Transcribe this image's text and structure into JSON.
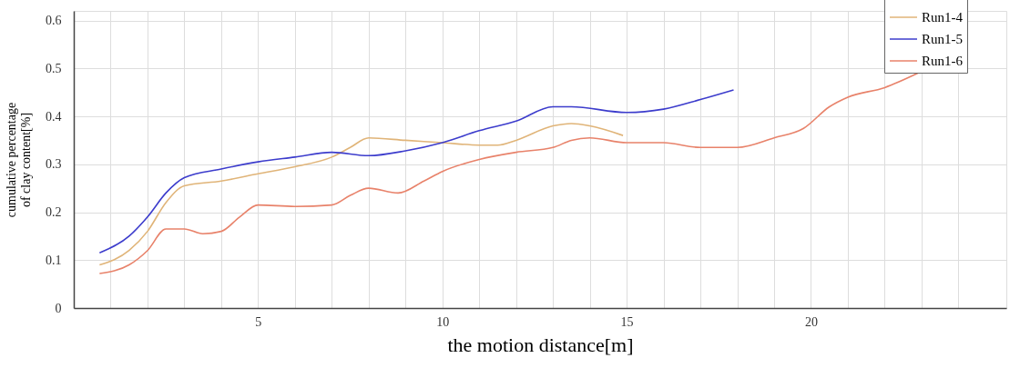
{
  "chart_data": {
    "type": "line",
    "xlabel": "the motion distance[m]",
    "ylabel": "cumulative percentage\nof clay content[%]",
    "xlim": [
      0,
      25.3
    ],
    "ylim": [
      0,
      0.62
    ],
    "xticks": [
      {
        "value": 1,
        "label": null
      },
      {
        "value": 2,
        "label": null
      },
      {
        "value": 3,
        "label": null
      },
      {
        "value": 4,
        "label": null
      },
      5,
      {
        "value": 6,
        "label": null
      },
      {
        "value": 7,
        "label": null
      },
      {
        "value": 8,
        "label": null
      },
      {
        "value": 9,
        "label": null
      },
      10,
      {
        "value": 11,
        "label": null
      },
      {
        "value": 12,
        "label": null
      },
      {
        "value": 13,
        "label": null
      },
      {
        "value": 14,
        "label": null
      },
      15,
      {
        "value": 16,
        "label": null
      },
      {
        "value": 17,
        "label": null
      },
      {
        "value": 18,
        "label": null
      },
      {
        "value": 19,
        "label": null
      },
      20,
      {
        "value": 21,
        "label": null
      },
      {
        "value": 22,
        "label": null
      },
      {
        "value": 23,
        "label": null
      },
      {
        "value": 24,
        "label": null
      }
    ],
    "yticks": [
      0,
      0.1,
      0.2,
      0.3,
      0.4,
      0.5,
      0.6
    ],
    "grid": true,
    "legend": "top right",
    "marker": "none",
    "line_style": "solid",
    "series": [
      {
        "name": "Run1-4",
        "color": "#e0b478",
        "x": [
          0.7,
          1.5,
          2,
          2.5,
          3,
          4,
          5,
          6,
          7,
          7.5,
          8,
          9,
          10,
          11,
          11.5,
          12,
          13,
          13.5,
          14,
          14.9
        ],
        "values": [
          0.09,
          0.12,
          0.16,
          0.22,
          0.255,
          0.265,
          0.28,
          0.295,
          0.315,
          0.335,
          0.355,
          0.35,
          0.345,
          0.34,
          0.34,
          0.35,
          0.38,
          0.385,
          0.38,
          0.36
        ]
      },
      {
        "name": "Run1-5",
        "color": "#3c3ccc",
        "x": [
          0.7,
          1.5,
          2,
          2.5,
          3,
          4,
          5,
          6,
          7,
          8,
          9,
          10,
          11,
          12,
          13,
          13.5,
          15,
          16,
          17,
          17.9
        ],
        "values": [
          0.115,
          0.15,
          0.19,
          0.24,
          0.272,
          0.29,
          0.305,
          0.315,
          0.325,
          0.318,
          0.328,
          0.345,
          0.37,
          0.39,
          0.42,
          0.42,
          0.408,
          0.415,
          0.435,
          0.455
        ]
      },
      {
        "name": "Run1-6",
        "color": "#e8826a",
        "x": [
          0.7,
          1.5,
          2,
          2.5,
          3,
          3.5,
          4,
          4.5,
          5,
          6,
          7,
          7.5,
          8,
          8.8,
          9.5,
          10,
          11,
          12,
          13,
          13.5,
          14,
          15,
          16,
          17,
          18,
          19,
          19.8,
          20.5,
          21,
          22,
          22.9
        ],
        "values": [
          0.072,
          0.09,
          0.12,
          0.165,
          0.165,
          0.155,
          0.16,
          0.19,
          0.215,
          0.212,
          0.215,
          0.235,
          0.25,
          0.24,
          0.265,
          0.285,
          0.31,
          0.325,
          0.335,
          0.35,
          0.355,
          0.345,
          0.345,
          0.335,
          0.335,
          0.355,
          0.375,
          0.42,
          0.44,
          0.46,
          0.49
        ]
      }
    ]
  }
}
